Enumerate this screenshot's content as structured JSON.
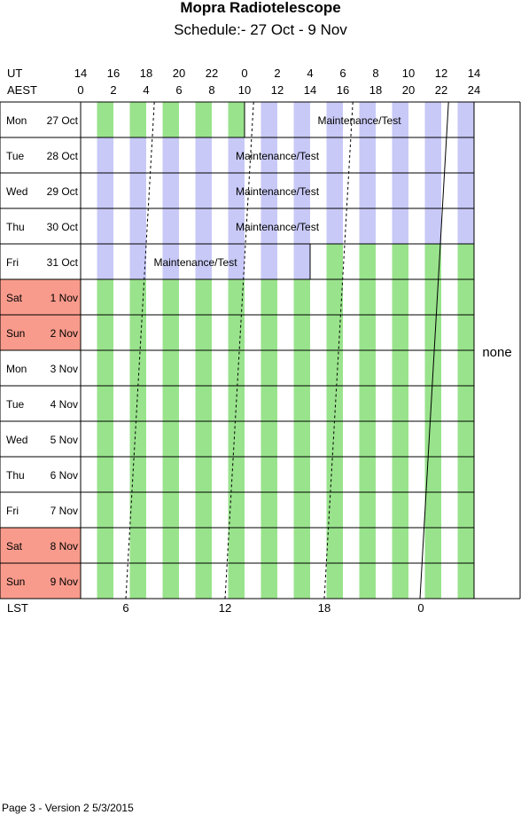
{
  "title": "Mopra Radiotelescope",
  "subtitle": "Schedule:- 27 Oct - 9  Nov",
  "footer": "Page 3 - Version 2  5/3/2015",
  "chart_data": {
    "type": "schedule",
    "axis_labels": {
      "ut": "UT",
      "aest": "AEST",
      "lst": "LST"
    },
    "ut_ticks": [
      "14",
      "16",
      "18",
      "20",
      "22",
      "0",
      "2",
      "4",
      "6",
      "8",
      "10",
      "12",
      "14"
    ],
    "aest_ticks": [
      "0",
      "2",
      "4",
      "6",
      "8",
      "10",
      "12",
      "14",
      "16",
      "18",
      "20",
      "22",
      "24"
    ],
    "lst_ticks": [
      "6",
      "12",
      "18",
      "0"
    ],
    "colors": {
      "available": "#99e38c",
      "maintenance": "#c8c9f7",
      "weekend": "#f99b8c",
      "grid": "#000000"
    },
    "days": [
      {
        "dow": "Mon",
        "date": "27 Oct",
        "weekend": false
      },
      {
        "dow": "Tue",
        "date": "28 Oct",
        "weekend": false
      },
      {
        "dow": "Wed",
        "date": "29 Oct",
        "weekend": false
      },
      {
        "dow": "Thu",
        "date": "30 Oct",
        "weekend": false
      },
      {
        "dow": "Fri",
        "date": "31 Oct",
        "weekend": false
      },
      {
        "dow": "Sat",
        "date": "1 Nov",
        "weekend": true
      },
      {
        "dow": "Sun",
        "date": "2 Nov",
        "weekend": true
      },
      {
        "dow": "Mon",
        "date": "3 Nov",
        "weekend": false
      },
      {
        "dow": "Tue",
        "date": "4 Nov",
        "weekend": false
      },
      {
        "dow": "Wed",
        "date": "5 Nov",
        "weekend": false
      },
      {
        "dow": "Thu",
        "date": "6 Nov",
        "weekend": false
      },
      {
        "dow": "Fri",
        "date": "7 Nov",
        "weekend": false
      },
      {
        "dow": "Sat",
        "date": "8 Nov",
        "weekend": true
      },
      {
        "dow": "Sun",
        "date": "9 Nov",
        "weekend": true
      }
    ],
    "blocks": [
      {
        "day": 0,
        "start_aest": 0,
        "end_aest": 10,
        "label": ""
      },
      {
        "day": 0,
        "start_aest": 10,
        "end_aest": 24,
        "label": "Maintenance/Test"
      },
      {
        "day": 1,
        "start_aest": 0,
        "end_aest": 24,
        "label": "Maintenance/Test"
      },
      {
        "day": 2,
        "start_aest": 0,
        "end_aest": 24,
        "label": "Maintenance/Test"
      },
      {
        "day": 3,
        "start_aest": 0,
        "end_aest": 24,
        "label": "Maintenance/Test"
      },
      {
        "day": 4,
        "start_aest": 0,
        "end_aest": 14,
        "label": "Maintenance/Test"
      },
      {
        "day": 4,
        "start_aest": 14,
        "end_aest": 24,
        "label": ""
      },
      {
        "day": 5,
        "start_aest": 0,
        "end_aest": 24,
        "label": ""
      },
      {
        "day": 6,
        "start_aest": 0,
        "end_aest": 24,
        "label": ""
      },
      {
        "day": 7,
        "start_aest": 0,
        "end_aest": 24,
        "label": ""
      },
      {
        "day": 8,
        "start_aest": 0,
        "end_aest": 24,
        "label": ""
      },
      {
        "day": 9,
        "start_aest": 0,
        "end_aest": 24,
        "label": ""
      },
      {
        "day": 10,
        "start_aest": 0,
        "end_aest": 24,
        "label": ""
      },
      {
        "day": 11,
        "start_aest": 0,
        "end_aest": 24,
        "label": ""
      },
      {
        "day": 12,
        "start_aest": 0,
        "end_aest": 24,
        "label": ""
      },
      {
        "day": 13,
        "start_aest": 0,
        "end_aest": 24,
        "label": ""
      }
    ],
    "maintenance_days": [
      0,
      1,
      2,
      3
    ],
    "maintenance_partial": {
      "day": 4,
      "end_aest": 14
    },
    "right_note": "none"
  }
}
